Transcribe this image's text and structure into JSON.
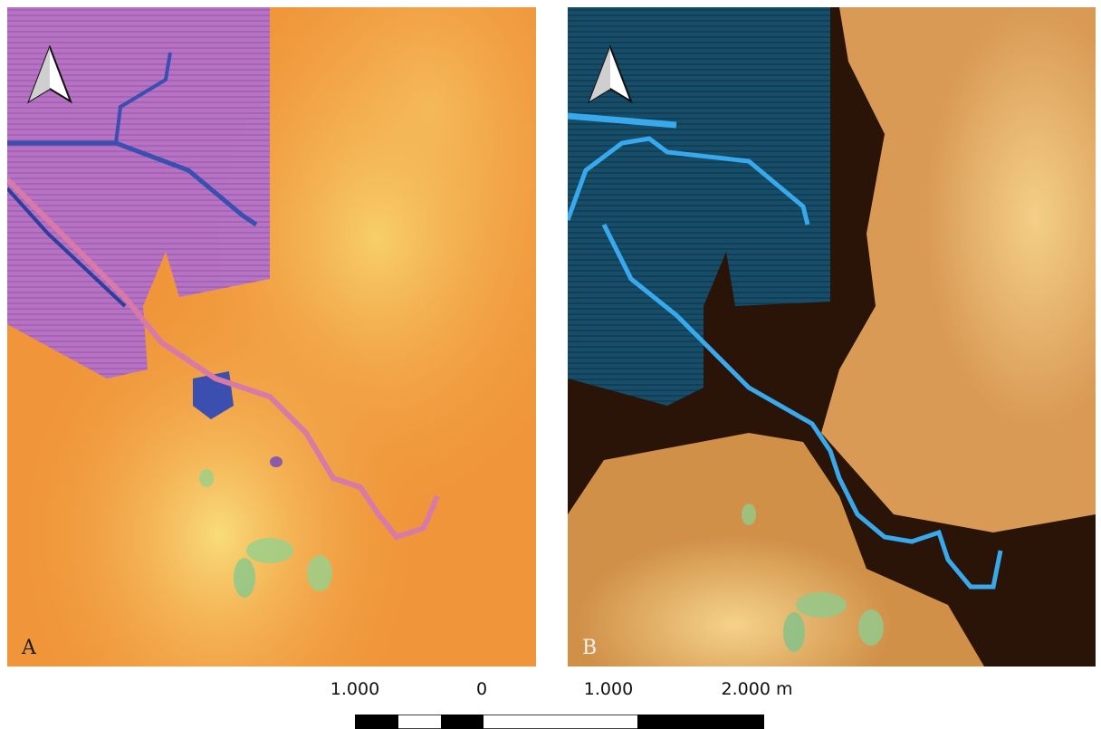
{
  "panels": [
    {
      "letter": "A",
      "colors": {
        "low": "#b36bd6",
        "mid": "#f0953a",
        "high": "#f7cf6a",
        "peak": "#7cc98a",
        "water": "#3a4fb0",
        "river": "#d77aa8"
      }
    },
    {
      "letter": "B",
      "colors": {
        "low": "#2a1408",
        "mid": "#c98a4a",
        "high": "#f0c87a",
        "peak": "#6fb88a",
        "water": "#1e8fd6",
        "river": "#39a9ee"
      }
    }
  ],
  "north_arrow": {
    "icon": "north-arrow-icon"
  },
  "scale": {
    "labels": [
      "1.000",
      "0",
      "1.000",
      "2.000 m"
    ],
    "segments": [
      "black",
      "white",
      "black",
      "white",
      "black"
    ]
  }
}
